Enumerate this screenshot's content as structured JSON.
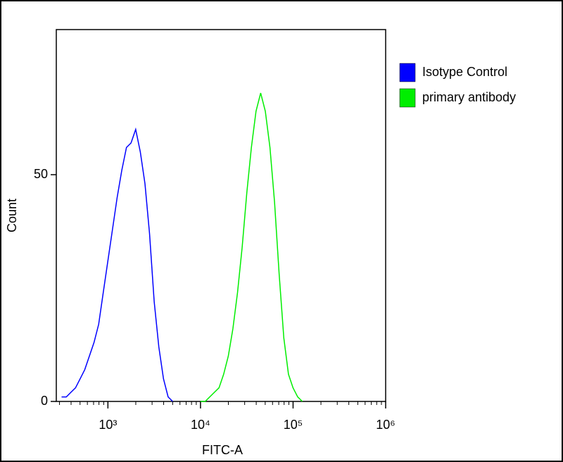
{
  "chart_data": {
    "type": "line",
    "xscale": "log",
    "xlabel": "FITC-A",
    "ylabel": "Count",
    "x": [
      316,
      355,
      398,
      447,
      501,
      562,
      631,
      708,
      794,
      891,
      1000,
      1122,
      1259,
      1413,
      1585,
      1778,
      1995,
      2239,
      2512,
      2818,
      3162,
      3548,
      3981,
      4467,
      5012,
      5623,
      6310,
      7079,
      7943,
      8913,
      10000,
      11220,
      12589,
      14125,
      15849,
      17783,
      19953,
      22387,
      25119,
      28184,
      31623,
      35481,
      39811,
      44668,
      50119,
      56234,
      63096,
      70795,
      79433,
      89125,
      100000,
      112202,
      125893,
      141254
    ],
    "series": [
      {
        "name": "Isotype Control",
        "color": "#0000ff",
        "values": [
          1,
          1,
          2,
          3,
          5,
          7,
          10,
          13,
          17,
          24,
          31,
          38,
          45,
          51,
          56,
          57,
          60,
          55,
          48,
          37,
          22,
          12,
          5,
          1,
          0,
          null,
          null,
          null,
          null,
          null,
          null,
          null,
          null,
          null,
          null,
          null,
          null,
          null,
          null,
          null,
          null,
          null,
          null,
          null,
          null,
          null,
          null,
          null,
          null,
          null,
          null,
          null,
          null,
          null
        ]
      },
      {
        "name": "primary antibody",
        "color": "#00ee00",
        "values": [
          null,
          null,
          null,
          null,
          null,
          null,
          null,
          null,
          null,
          null,
          null,
          null,
          null,
          null,
          null,
          null,
          null,
          null,
          null,
          null,
          null,
          null,
          null,
          null,
          null,
          null,
          null,
          null,
          null,
          null,
          0,
          0,
          1,
          2,
          3,
          6,
          10,
          16,
          24,
          34,
          46,
          56,
          64,
          68,
          64,
          56,
          44,
          28,
          14,
          6,
          3,
          1,
          0,
          null
        ]
      }
    ],
    "xlim": [
      277,
      1000000
    ],
    "ylim": [
      0,
      82
    ],
    "xticks": [
      {
        "value": 1000,
        "label": "10³"
      },
      {
        "value": 10000,
        "label": "10⁴"
      },
      {
        "value": 100000,
        "label": "10⁵"
      },
      {
        "value": 1000000,
        "label": "10⁶"
      }
    ],
    "xminorticks": [
      300,
      400,
      500,
      600,
      700,
      800,
      900,
      2000,
      3000,
      4000,
      5000,
      6000,
      7000,
      8000,
      9000,
      20000,
      30000,
      40000,
      50000,
      60000,
      70000,
      80000,
      90000,
      200000,
      300000,
      400000,
      500000,
      600000,
      700000,
      800000,
      900000
    ],
    "yticks": [
      0,
      50
    ],
    "legend": "right",
    "grid": false
  }
}
